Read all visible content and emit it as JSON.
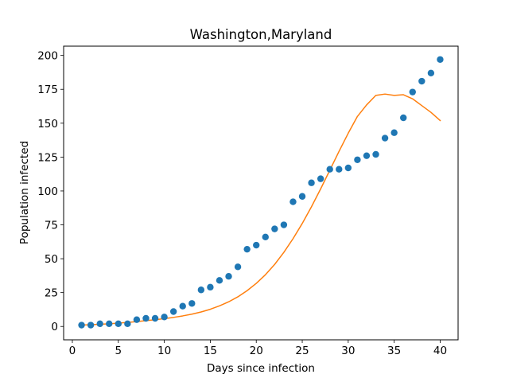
{
  "chart_data": {
    "type": "scatter",
    "title": "Washington,Maryland",
    "xlabel": "Days since infection",
    "ylabel": "Population infected",
    "xlim": [
      -0.95,
      41.95
    ],
    "ylim": [
      -9.85,
      206.85
    ],
    "xticks": [
      0,
      5,
      10,
      15,
      20,
      25,
      30,
      35,
      40
    ],
    "yticks": [
      0,
      25,
      50,
      75,
      100,
      125,
      150,
      175,
      200
    ],
    "grid": false,
    "legend": "none",
    "series": [
      {
        "type": "scatter",
        "color": "#1f77b4",
        "x": [
          1,
          2,
          3,
          4,
          5,
          6,
          7,
          8,
          9,
          10,
          11,
          12,
          13,
          14,
          15,
          16,
          17,
          18,
          19,
          20,
          21,
          22,
          23,
          24,
          25,
          26,
          27,
          28,
          29,
          30,
          31,
          32,
          33,
          34,
          35,
          36,
          37,
          38,
          39,
          40
        ],
        "y": [
          1,
          1,
          2,
          2,
          2,
          2,
          5,
          6,
          6,
          7,
          11,
          15,
          17,
          27,
          29,
          34,
          37,
          44,
          57,
          60,
          66,
          72,
          75,
          92,
          96,
          106,
          109,
          116,
          116,
          117,
          123,
          126,
          127,
          139,
          143,
          154,
          173,
          181,
          187,
          197
        ]
      },
      {
        "type": "line",
        "color": "#ff7f0e",
        "x": [
          1,
          2,
          3,
          4,
          5,
          6,
          7,
          8,
          9,
          10,
          11,
          12,
          13,
          14,
          15,
          16,
          17,
          18,
          19,
          20,
          21,
          22,
          23,
          24,
          25,
          26,
          27,
          28,
          29,
          30,
          31,
          32,
          33,
          34,
          35,
          36,
          37,
          38,
          39,
          40
        ],
        "y": [
          1,
          1.3,
          1.6,
          2,
          2.5,
          3,
          3.6,
          4.3,
          5,
          5.8,
          6.7,
          7.8,
          9.1,
          10.7,
          12.7,
          15.2,
          18.2,
          21.9,
          26.4,
          31.8,
          38.2,
          45.8,
          54.7,
          64.8,
          76,
          88.3,
          101.5,
          115.3,
          129.2,
          142.6,
          155,
          163.5,
          170.5,
          171.5,
          170.5,
          171,
          168,
          163,
          158,
          152
        ]
      }
    ]
  }
}
